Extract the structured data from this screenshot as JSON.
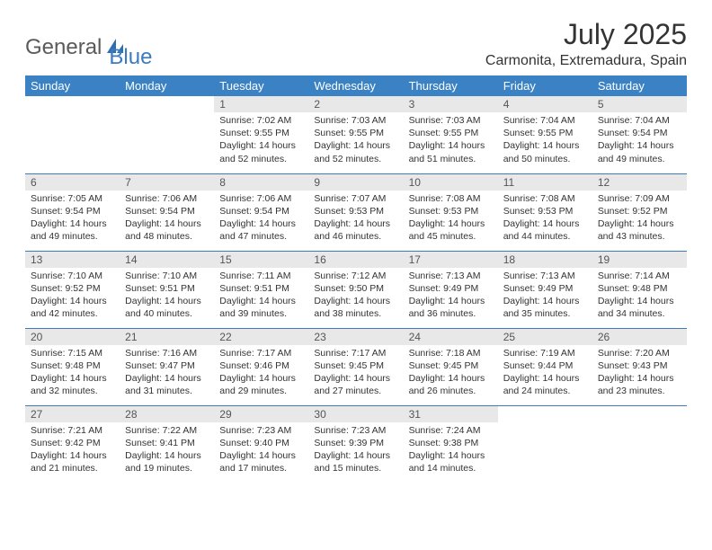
{
  "brand": {
    "part1": "General",
    "part2": "Blue"
  },
  "title": "July 2025",
  "location": "Carmonita, Extremadura, Spain",
  "colors": {
    "header_bg": "#3b82c4",
    "header_text": "#ffffff",
    "daynum_bg": "#e8e8e8",
    "rule": "#3b7bbf",
    "logo_gray": "#5a5a5a",
    "logo_blue": "#3b7bbf"
  },
  "weekdays": [
    "Sunday",
    "Monday",
    "Tuesday",
    "Wednesday",
    "Thursday",
    "Friday",
    "Saturday"
  ],
  "weeks": [
    [
      null,
      null,
      {
        "n": "1",
        "sr": "7:02 AM",
        "ss": "9:55 PM",
        "dl": "14 hours and 52 minutes."
      },
      {
        "n": "2",
        "sr": "7:03 AM",
        "ss": "9:55 PM",
        "dl": "14 hours and 52 minutes."
      },
      {
        "n": "3",
        "sr": "7:03 AM",
        "ss": "9:55 PM",
        "dl": "14 hours and 51 minutes."
      },
      {
        "n": "4",
        "sr": "7:04 AM",
        "ss": "9:55 PM",
        "dl": "14 hours and 50 minutes."
      },
      {
        "n": "5",
        "sr": "7:04 AM",
        "ss": "9:54 PM",
        "dl": "14 hours and 49 minutes."
      }
    ],
    [
      {
        "n": "6",
        "sr": "7:05 AM",
        "ss": "9:54 PM",
        "dl": "14 hours and 49 minutes."
      },
      {
        "n": "7",
        "sr": "7:06 AM",
        "ss": "9:54 PM",
        "dl": "14 hours and 48 minutes."
      },
      {
        "n": "8",
        "sr": "7:06 AM",
        "ss": "9:54 PM",
        "dl": "14 hours and 47 minutes."
      },
      {
        "n": "9",
        "sr": "7:07 AM",
        "ss": "9:53 PM",
        "dl": "14 hours and 46 minutes."
      },
      {
        "n": "10",
        "sr": "7:08 AM",
        "ss": "9:53 PM",
        "dl": "14 hours and 45 minutes."
      },
      {
        "n": "11",
        "sr": "7:08 AM",
        "ss": "9:53 PM",
        "dl": "14 hours and 44 minutes."
      },
      {
        "n": "12",
        "sr": "7:09 AM",
        "ss": "9:52 PM",
        "dl": "14 hours and 43 minutes."
      }
    ],
    [
      {
        "n": "13",
        "sr": "7:10 AM",
        "ss": "9:52 PM",
        "dl": "14 hours and 42 minutes."
      },
      {
        "n": "14",
        "sr": "7:10 AM",
        "ss": "9:51 PM",
        "dl": "14 hours and 40 minutes."
      },
      {
        "n": "15",
        "sr": "7:11 AM",
        "ss": "9:51 PM",
        "dl": "14 hours and 39 minutes."
      },
      {
        "n": "16",
        "sr": "7:12 AM",
        "ss": "9:50 PM",
        "dl": "14 hours and 38 minutes."
      },
      {
        "n": "17",
        "sr": "7:13 AM",
        "ss": "9:49 PM",
        "dl": "14 hours and 36 minutes."
      },
      {
        "n": "18",
        "sr": "7:13 AM",
        "ss": "9:49 PM",
        "dl": "14 hours and 35 minutes."
      },
      {
        "n": "19",
        "sr": "7:14 AM",
        "ss": "9:48 PM",
        "dl": "14 hours and 34 minutes."
      }
    ],
    [
      {
        "n": "20",
        "sr": "7:15 AM",
        "ss": "9:48 PM",
        "dl": "14 hours and 32 minutes."
      },
      {
        "n": "21",
        "sr": "7:16 AM",
        "ss": "9:47 PM",
        "dl": "14 hours and 31 minutes."
      },
      {
        "n": "22",
        "sr": "7:17 AM",
        "ss": "9:46 PM",
        "dl": "14 hours and 29 minutes."
      },
      {
        "n": "23",
        "sr": "7:17 AM",
        "ss": "9:45 PM",
        "dl": "14 hours and 27 minutes."
      },
      {
        "n": "24",
        "sr": "7:18 AM",
        "ss": "9:45 PM",
        "dl": "14 hours and 26 minutes."
      },
      {
        "n": "25",
        "sr": "7:19 AM",
        "ss": "9:44 PM",
        "dl": "14 hours and 24 minutes."
      },
      {
        "n": "26",
        "sr": "7:20 AM",
        "ss": "9:43 PM",
        "dl": "14 hours and 23 minutes."
      }
    ],
    [
      {
        "n": "27",
        "sr": "7:21 AM",
        "ss": "9:42 PM",
        "dl": "14 hours and 21 minutes."
      },
      {
        "n": "28",
        "sr": "7:22 AM",
        "ss": "9:41 PM",
        "dl": "14 hours and 19 minutes."
      },
      {
        "n": "29",
        "sr": "7:23 AM",
        "ss": "9:40 PM",
        "dl": "14 hours and 17 minutes."
      },
      {
        "n": "30",
        "sr": "7:23 AM",
        "ss": "9:39 PM",
        "dl": "14 hours and 15 minutes."
      },
      {
        "n": "31",
        "sr": "7:24 AM",
        "ss": "9:38 PM",
        "dl": "14 hours and 14 minutes."
      },
      null,
      null
    ]
  ],
  "labels": {
    "sunrise": "Sunrise:",
    "sunset": "Sunset:",
    "daylight": "Daylight:"
  }
}
